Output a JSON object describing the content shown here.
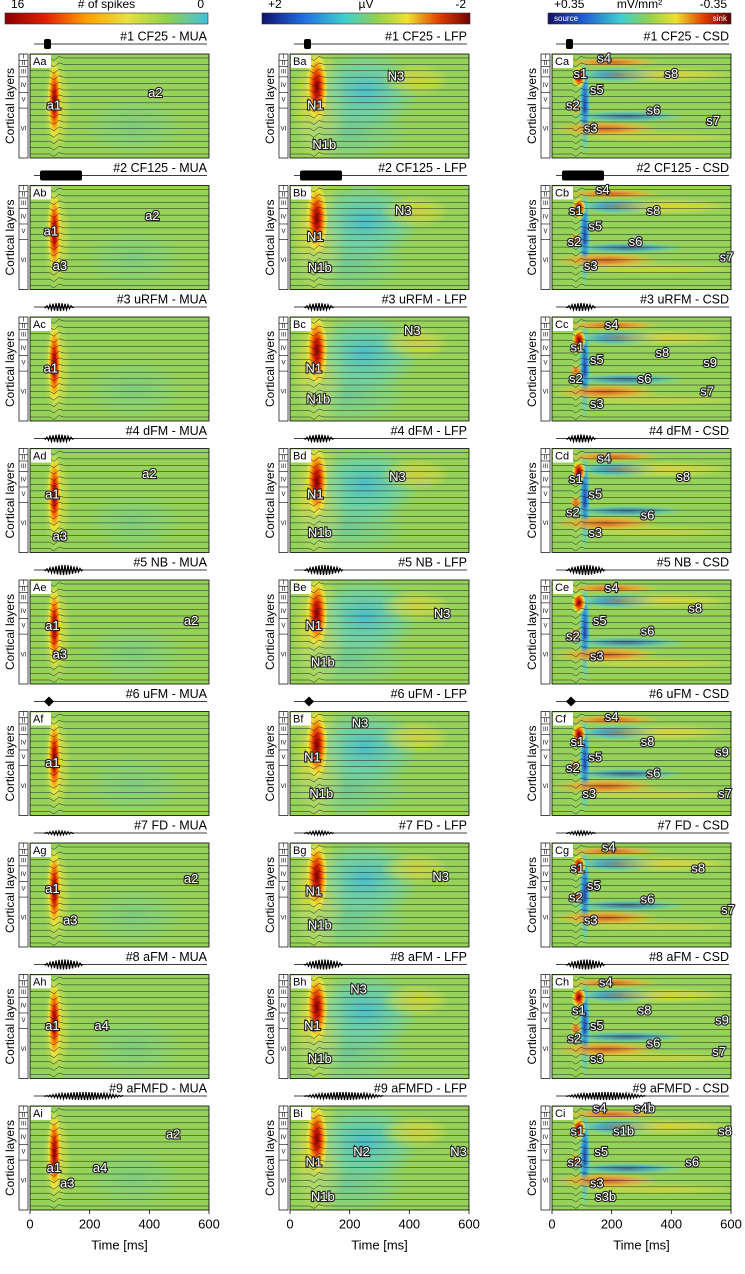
{
  "layer_axis_label": "Cortical layers",
  "layers": [
    "I",
    "II",
    "III",
    "IV",
    "V",
    "VI"
  ],
  "columns": [
    {
      "colorbar": {
        "left": "16",
        "title": "# of spikes",
        "right": "0"
      },
      "xlim": [
        0,
        600
      ],
      "xticks": [
        0,
        200,
        400,
        600
      ],
      "xlabel": "Time [ms]",
      "panels": [
        {
          "title": "#1 CF25 - MUA",
          "id": "Aa",
          "labels": [
            "a1",
            "a2"
          ]
        },
        {
          "title": "#2 CF125 - MUA",
          "id": "Ab",
          "labels": [
            "a1",
            "a2",
            "a3"
          ]
        },
        {
          "title": "#3 uRFM - MUA",
          "id": "Ac",
          "labels": [
            "a1"
          ]
        },
        {
          "title": "#4 dFM - MUA",
          "id": "Ad",
          "labels": [
            "a1",
            "a2",
            "a3"
          ]
        },
        {
          "title": "#5 NB - MUA",
          "id": "Ae",
          "labels": [
            "a1",
            "a2",
            "a3"
          ]
        },
        {
          "title": "#6 uFM - MUA",
          "id": "Af",
          "labels": [
            "a1"
          ]
        },
        {
          "title": "#7 FD - MUA",
          "id": "Ag",
          "labels": [
            "a1",
            "a2",
            "a3"
          ]
        },
        {
          "title": "#8 aFM - MUA",
          "id": "Ah",
          "labels": [
            "a1",
            "a4"
          ]
        },
        {
          "title": "#9 aFMFD - MUA",
          "id": "Ai",
          "labels": [
            "a1",
            "a3",
            "a4",
            "a2"
          ]
        }
      ]
    },
    {
      "colorbar": {
        "left": "+2",
        "title": "µV",
        "right": "-2"
      },
      "xlim": [
        0,
        600
      ],
      "xticks": [
        0,
        200,
        400,
        600
      ],
      "xlabel": "Time [ms]",
      "panels": [
        {
          "title": "#1 CF25 - LFP",
          "id": "Ba",
          "labels": [
            "N1",
            "N3",
            "N1b"
          ]
        },
        {
          "title": "#2 CF125 - LFP",
          "id": "Bb",
          "labels": [
            "N1",
            "N3",
            "N1b"
          ]
        },
        {
          "title": "#3 uRFM - LFP",
          "id": "Bc",
          "labels": [
            "N1",
            "N3",
            "N1b"
          ]
        },
        {
          "title": "#4 dFM - LFP",
          "id": "Bd",
          "labels": [
            "N1",
            "N3",
            "N1b"
          ]
        },
        {
          "title": "#5 NB - LFP",
          "id": "Be",
          "labels": [
            "N1",
            "N3",
            "N1b"
          ]
        },
        {
          "title": "#6 uFM - LFP",
          "id": "Bf",
          "labels": [
            "N1",
            "N3",
            "N1b"
          ]
        },
        {
          "title": "#7 FD - LFP",
          "id": "Bg",
          "labels": [
            "N1",
            "N3",
            "N1b"
          ]
        },
        {
          "title": "#8 aFM - LFP",
          "id": "Bh",
          "labels": [
            "N1",
            "N3",
            "N1b"
          ]
        },
        {
          "title": "#9 aFMFD - LFP",
          "id": "Bi",
          "labels": [
            "N1",
            "N2",
            "N3",
            "N1b"
          ]
        }
      ]
    },
    {
      "colorbar": {
        "left": "+0.35",
        "title": "mV/mm²",
        "right": "-0.35",
        "inner_left": "source",
        "inner_right": "sink"
      },
      "xlim": [
        0,
        600
      ],
      "xticks": [
        0,
        200,
        400,
        600
      ],
      "xlabel": "Time [ms]",
      "panels": [
        {
          "title": "#1 CF25 - CSD",
          "id": "Ca",
          "labels": [
            "s4",
            "s1",
            "s8",
            "s5",
            "s2",
            "s6",
            "s3",
            "s7"
          ]
        },
        {
          "title": "#2 CF125 - CSD",
          "id": "Cb",
          "labels": [
            "s4",
            "s1",
            "s8",
            "s5",
            "s2",
            "s6",
            "s7",
            "s3"
          ]
        },
        {
          "title": "#3 uRFM - CSD",
          "id": "Cc",
          "labels": [
            "s4",
            "s1",
            "s5",
            "s8",
            "s9",
            "s2",
            "s6",
            "s7",
            "s3"
          ]
        },
        {
          "title": "#4 dFM - CSD",
          "id": "Cd",
          "labels": [
            "s4",
            "s1",
            "s8",
            "s5",
            "s2",
            "s6",
            "s3"
          ]
        },
        {
          "title": "#5 NB - CSD",
          "id": "Ce",
          "labels": [
            "s4",
            "s8",
            "s5",
            "s2",
            "s6",
            "s3"
          ]
        },
        {
          "title": "#6 uFM - CSD",
          "id": "Cf",
          "labels": [
            "s4",
            "s1",
            "s8",
            "s5",
            "s9",
            "s2",
            "s6",
            "s7",
            "s3"
          ]
        },
        {
          "title": "#7 FD - CSD",
          "id": "Cg",
          "labels": [
            "s4",
            "s1",
            "s8",
            "s5",
            "s2",
            "s6",
            "s7",
            "s3"
          ]
        },
        {
          "title": "#8 aFM - CSD",
          "id": "Ch",
          "labels": [
            "s4",
            "s1",
            "s8",
            "s5",
            "s9",
            "s2",
            "s6",
            "s7",
            "s3"
          ]
        },
        {
          "title": "#9 aFMFD - CSD",
          "id": "Ci",
          "labels": [
            "s4",
            "s4b",
            "s1",
            "s1b",
            "s8",
            "s5",
            "s2",
            "s6",
            "s3",
            "s3b"
          ]
        }
      ]
    }
  ]
}
